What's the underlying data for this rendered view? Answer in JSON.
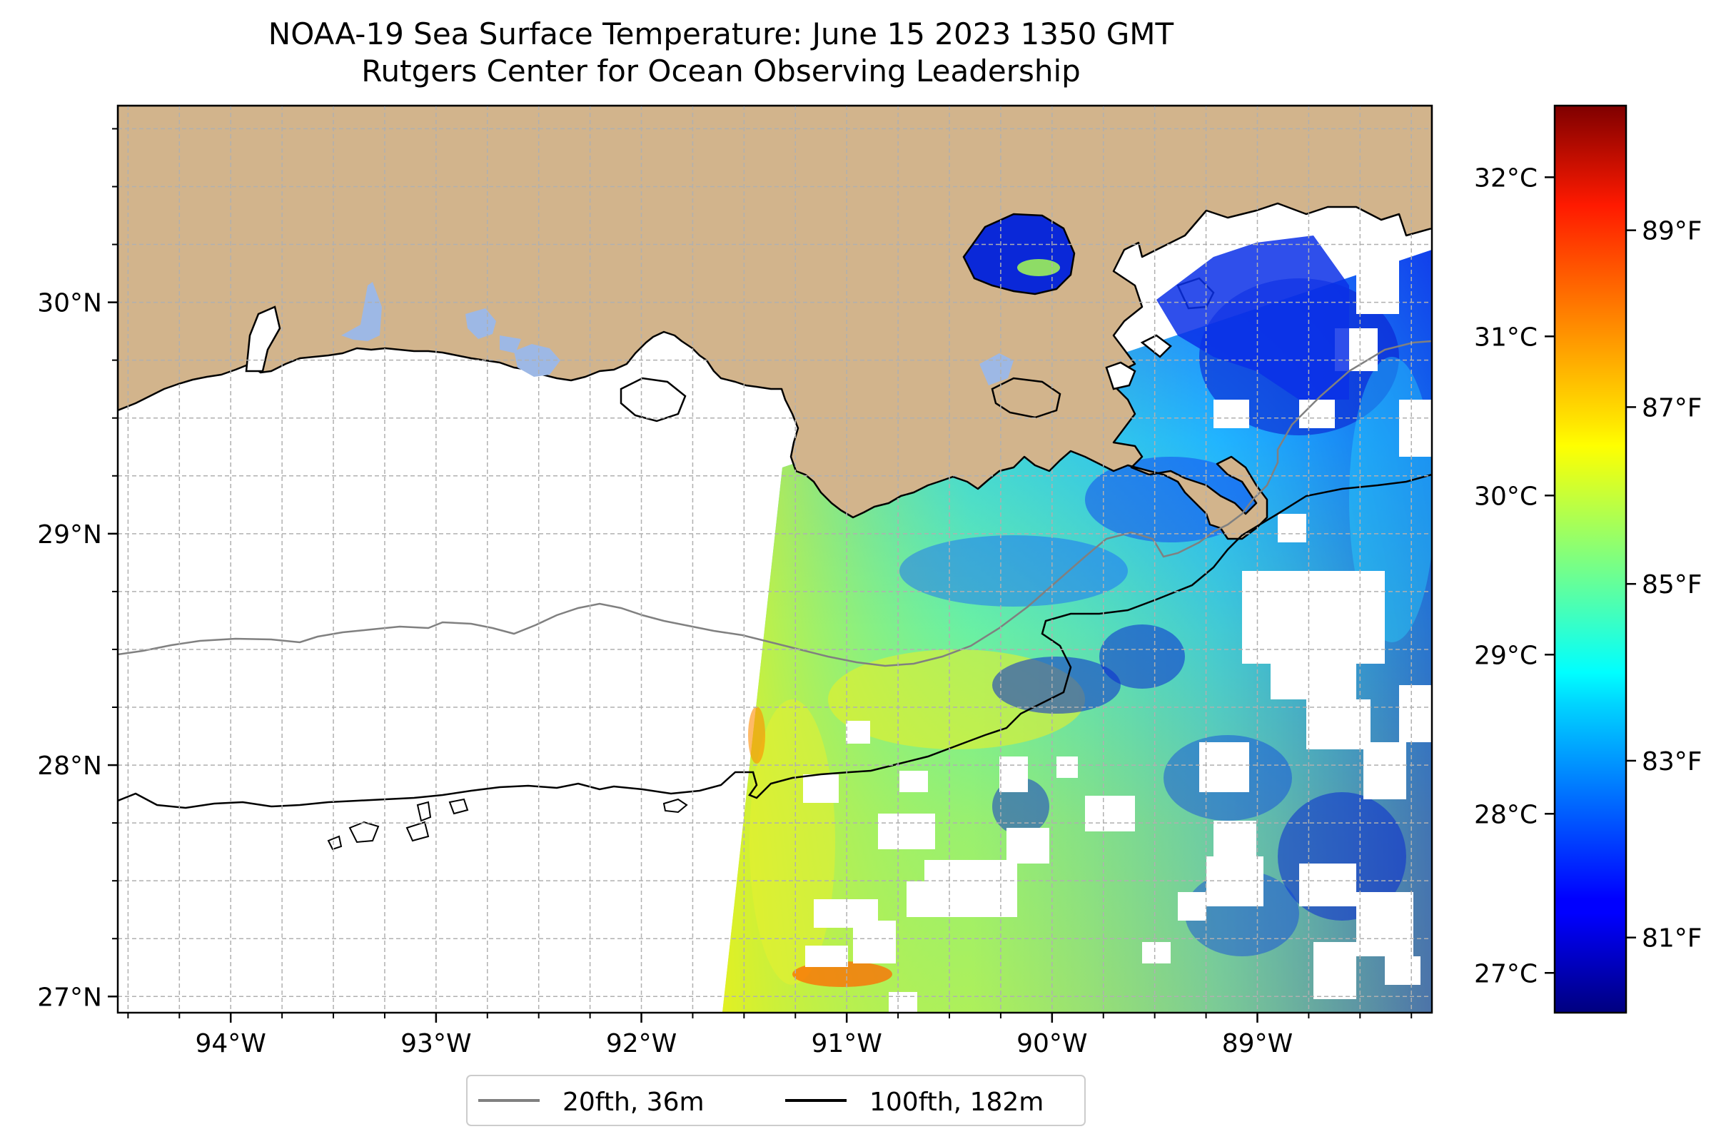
{
  "title": "NOAA-19 Sea Surface Temperature: June 15 2023 1350 GMT",
  "subtitle": "Rutgers Center for Ocean Observing Leadership",
  "map": {
    "lon_range": [
      -94.55,
      -88.15
    ],
    "lat_range": [
      26.93,
      30.85
    ],
    "lon_ticks": [
      {
        "value": -94,
        "label": "94°W"
      },
      {
        "value": -93,
        "label": "93°W"
      },
      {
        "value": -92,
        "label": "92°W"
      },
      {
        "value": -91,
        "label": "91°W"
      },
      {
        "value": -90,
        "label": "90°W"
      },
      {
        "value": -89,
        "label": "89°W"
      }
    ],
    "lat_ticks": [
      {
        "value": 27,
        "label": "27°N"
      },
      {
        "value": 28,
        "label": "28°N"
      },
      {
        "value": 29,
        "label": "29°N"
      },
      {
        "value": 30,
        "label": "30°N"
      }
    ],
    "gridlines": true,
    "land_color": "#D2B48C",
    "lake_color": "#9DB8E5",
    "colormap": "jet"
  },
  "legend": {
    "placement": "bottom-center",
    "items": [
      {
        "label": "20fth, 36m",
        "color": "#808080"
      },
      {
        "label": "100fth, 182m",
        "color": "#000000"
      }
    ]
  },
  "colorbar": {
    "range_c": [
      26.75,
      32.45
    ],
    "celsius_ticks": [
      {
        "value": 27,
        "label": "27°C"
      },
      {
        "value": 28,
        "label": "28°C"
      },
      {
        "value": 29,
        "label": "29°C"
      },
      {
        "value": 30,
        "label": "30°C"
      },
      {
        "value": 31,
        "label": "31°C"
      },
      {
        "value": 32,
        "label": "32°C"
      }
    ],
    "fahrenheit_ticks": [
      {
        "value": 81,
        "label": "81°F"
      },
      {
        "value": 83,
        "label": "83°F"
      },
      {
        "value": 85,
        "label": "85°F"
      },
      {
        "value": 87,
        "label": "87°F"
      },
      {
        "value": 89,
        "label": "89°F"
      }
    ]
  }
}
